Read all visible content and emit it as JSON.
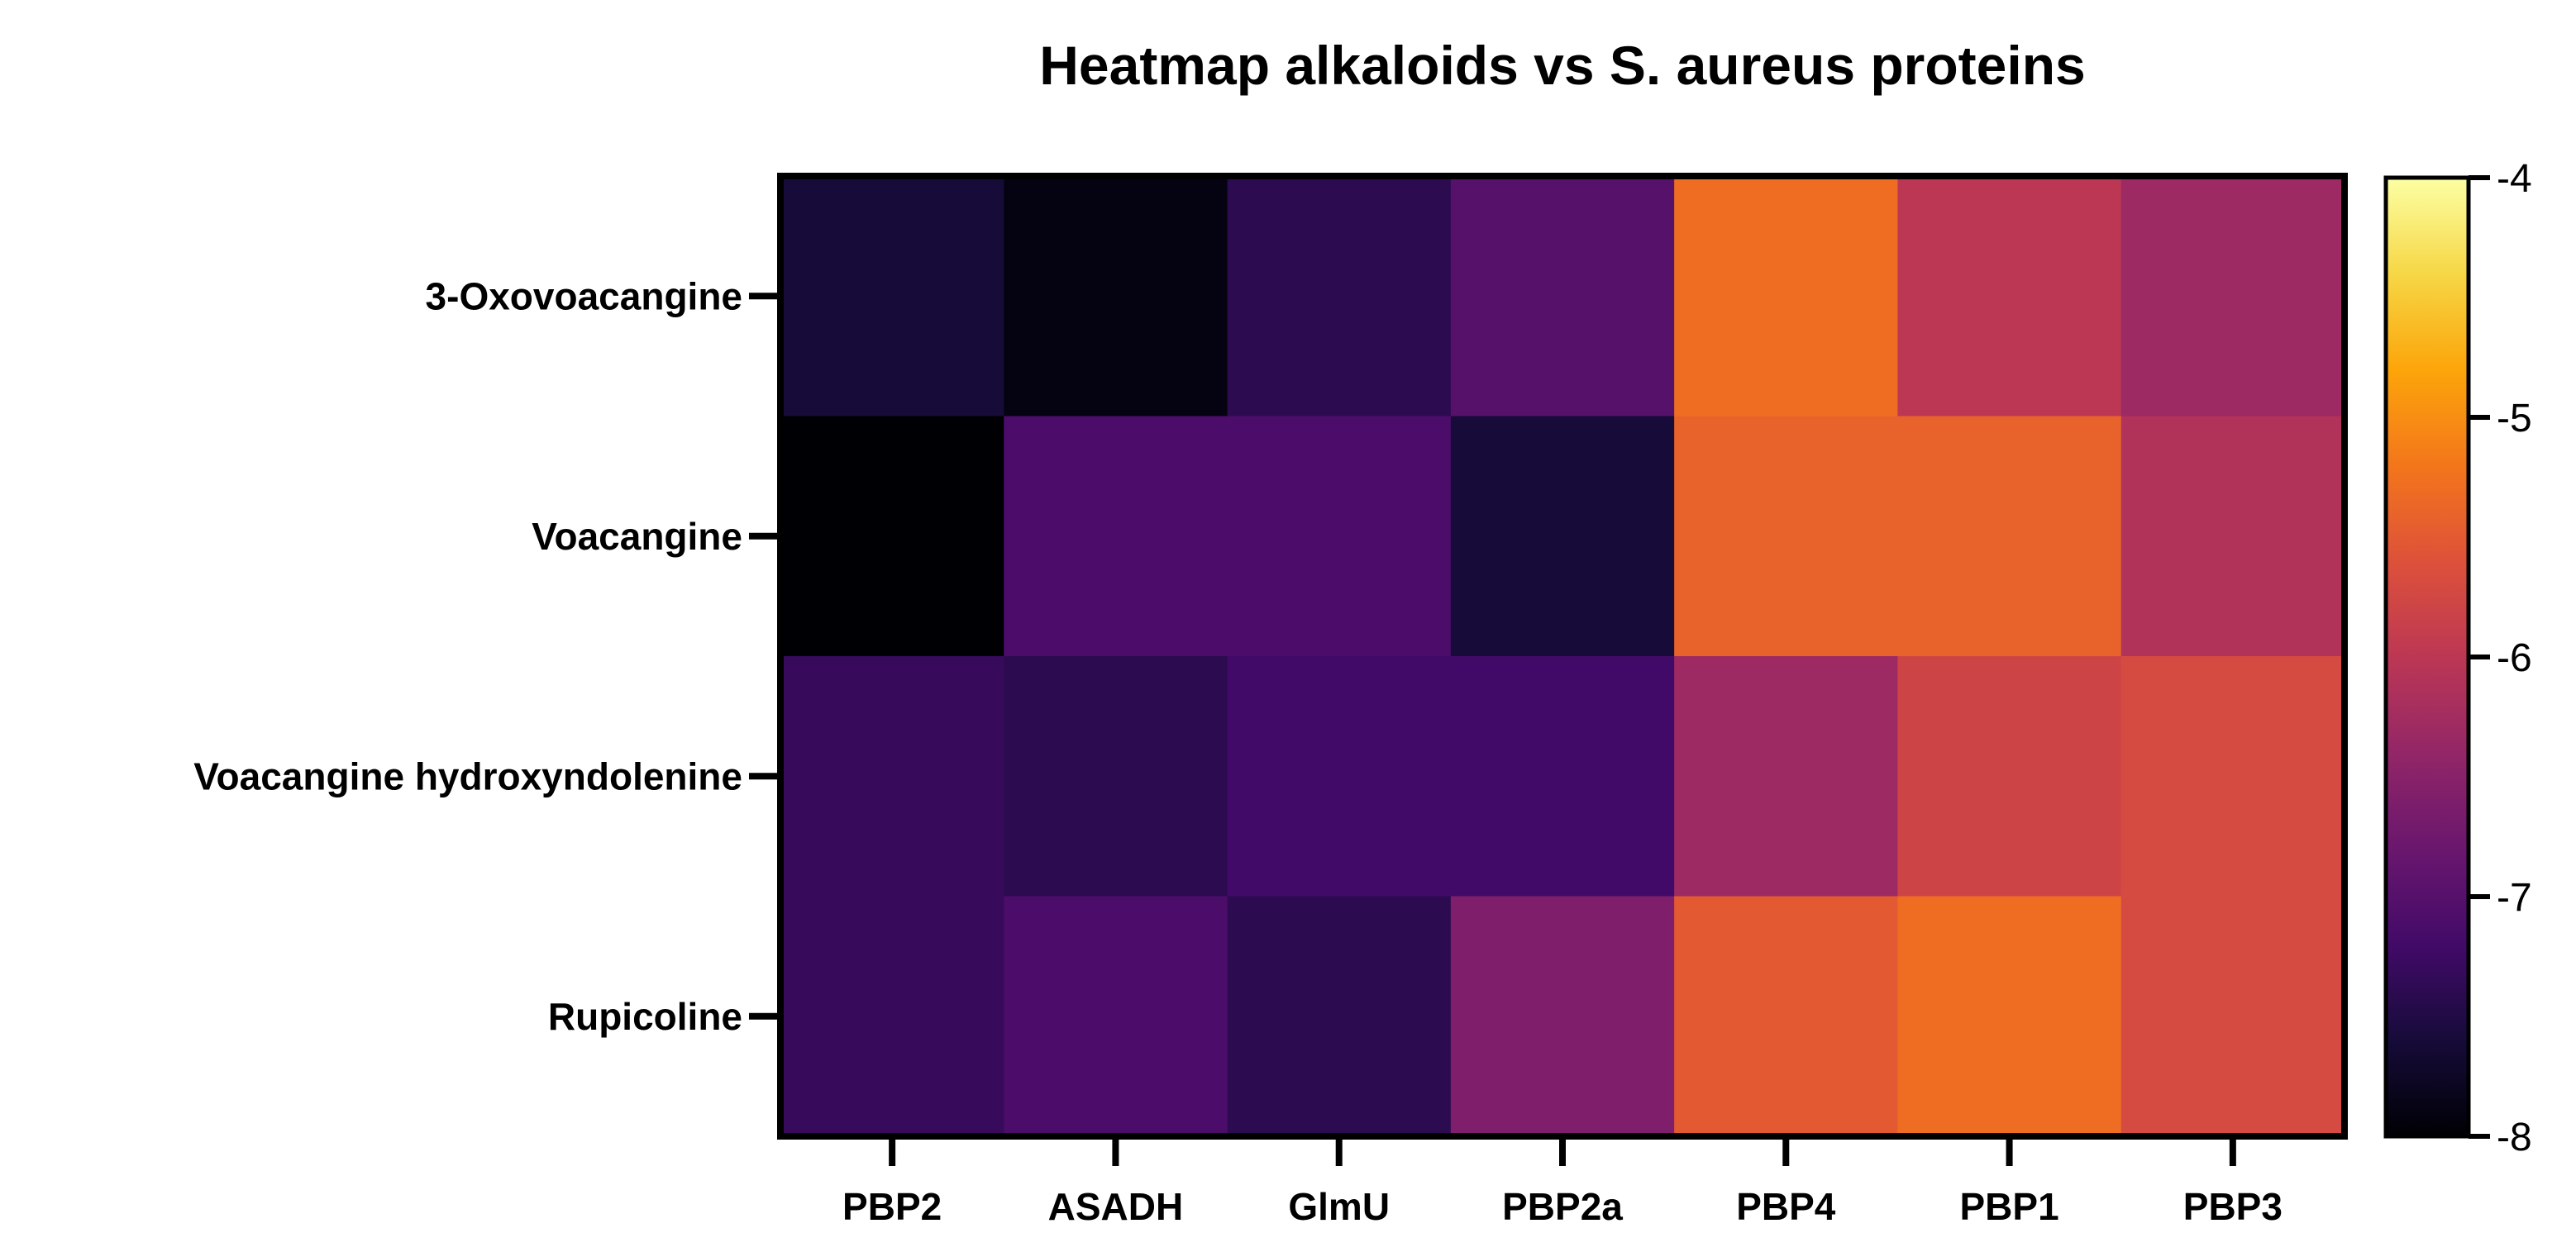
{
  "chart_data": {
    "type": "heatmap",
    "title": "Heatmap alkaloids vs S. aureus proteins",
    "columns": [
      "PBP2",
      "ASADH",
      "GlmU",
      "PBP2a",
      "PBP4",
      "PBP1",
      "PBP3"
    ],
    "rows": [
      "3-Oxovoacangine",
      "Voacangine",
      "Voacangine hydroxyndolenine",
      "Rupicoline"
    ],
    "values": [
      [
        -7.6,
        -7.9,
        -7.4,
        -7.0,
        -5.3,
        -6.0,
        -6.3
      ],
      [
        -8.1,
        -7.1,
        -7.1,
        -7.6,
        -5.4,
        -5.4,
        -6.1
      ],
      [
        -7.3,
        -7.4,
        -7.2,
        -7.2,
        -6.3,
        -5.8,
        -5.7
      ],
      [
        -7.3,
        -7.1,
        -7.4,
        -6.6,
        -5.5,
        -5.3,
        -5.7
      ]
    ],
    "colorbar": {
      "min": -8,
      "max": -4,
      "ticks": [
        "-4",
        "-5",
        "-6",
        "-7",
        "-8"
      ],
      "tick_values": [
        -4,
        -5,
        -6,
        -7,
        -8
      ],
      "colormap": "inferno"
    },
    "colors": {
      "frame": "#000000",
      "background": "#ffffff"
    }
  }
}
